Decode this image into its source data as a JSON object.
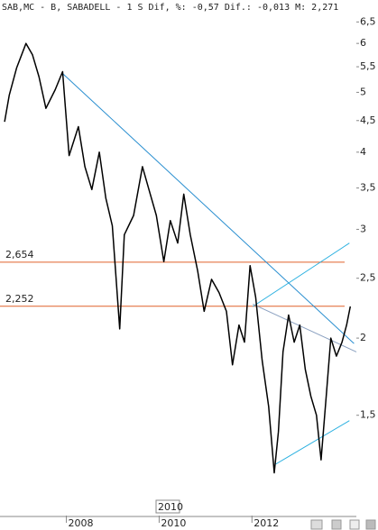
{
  "chart_data": {
    "type": "line",
    "title": "SAB,MC - B, SABADELL -  1 S Dif, %: -0,57 Dif.: -0,013 M: 2,271",
    "log_scale": true,
    "x": [
      2006.67,
      2006.77,
      2006.93,
      2007.13,
      2007.27,
      2007.41,
      2007.56,
      2007.76,
      2007.92,
      2008.06,
      2008.26,
      2008.4,
      2008.55,
      2008.71,
      2008.85,
      2008.99,
      2009.15,
      2009.25,
      2009.45,
      2009.64,
      2009.78,
      2009.94,
      2010.1,
      2010.24,
      2010.4,
      2010.53,
      2010.67,
      2010.83,
      2010.97,
      2011.13,
      2011.29,
      2011.45,
      2011.58,
      2011.72,
      2011.84,
      2011.96,
      2012.08,
      2012.22,
      2012.36,
      2012.48,
      2012.57,
      2012.67,
      2012.79,
      2012.91,
      2013.03,
      2013.15,
      2013.27,
      2013.39,
      2013.49,
      2013.6,
      2013.7,
      2013.82,
      2013.94,
      2014.04,
      2014.12
    ],
    "series": [
      {
        "color": "#000000",
        "values": [
          4.48,
          4.95,
          5.48,
          6.0,
          5.75,
          5.3,
          4.71,
          5.05,
          5.4,
          3.95,
          4.4,
          3.79,
          3.48,
          4.0,
          3.37,
          3.04,
          2.07,
          2.94,
          3.16,
          3.79,
          3.48,
          3.16,
          2.66,
          3.1,
          2.85,
          3.42,
          2.94,
          2.57,
          2.21,
          2.49,
          2.37,
          2.21,
          1.81,
          2.1,
          1.97,
          2.62,
          2.33,
          1.84,
          1.55,
          1.21,
          1.41,
          1.9,
          2.18,
          1.97,
          2.1,
          1.78,
          1.61,
          1.5,
          1.27,
          1.61,
          2.0,
          1.87,
          1.97,
          2.1,
          2.25
        ]
      }
    ],
    "trendlines": [
      {
        "color": "#2a8fd0",
        "x": [
          2007.9,
          2014.2
        ],
        "y": [
          5.38,
          1.96
        ]
      },
      {
        "color": "#2ab0e0",
        "x": [
          2012.02,
          2014.1
        ],
        "y": [
          2.25,
          2.85
        ]
      },
      {
        "color": "#2ab0e0",
        "x": [
          2012.51,
          2014.1
        ],
        "y": [
          1.25,
          1.47
        ]
      },
      {
        "color": "#8aa0c0",
        "x": [
          2012.02,
          2014.25
        ],
        "y": [
          2.27,
          1.9
        ]
      }
    ],
    "levels": [
      {
        "value": 2.654,
        "label": "2,654",
        "color": "#e0602a"
      },
      {
        "value": 2.252,
        "label": "2,252",
        "color": "#e0602a"
      }
    ],
    "xlim": [
      2006.57,
      2014.25
    ],
    "xticks": [
      2008,
      2010,
      2012
    ],
    "ylim": [
      1.032,
      6.64
    ],
    "yticks": [
      {
        "value": 1.5,
        "label": "1,5"
      },
      2,
      {
        "value": 2.5,
        "label": "2,5"
      },
      3,
      {
        "value": 3.5,
        "label": "3,5"
      },
      4,
      {
        "value": 4.5,
        "label": "4,5"
      },
      5,
      {
        "value": 5.5,
        "label": "5,5"
      },
      6,
      {
        "value": 6.5,
        "label": "6,5"
      }
    ],
    "cursor_label": "2010"
  }
}
